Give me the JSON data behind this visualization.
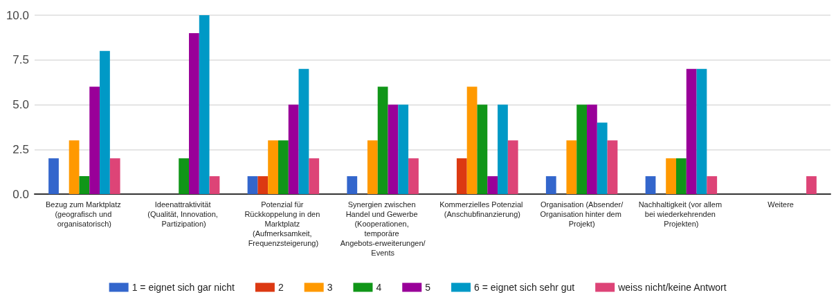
{
  "chart_data": {
    "type": "bar",
    "categories": [
      "Bezug zum Marktplatz (geografisch und organisatorisch)",
      "Ideenattraktivität (Qualität, Innovation, Partizipation)",
      "Potenzial für Rückkoppelung in den Marktplatz (Aufmerksamkeit, Frequenzsteigerung)",
      "Synergien zwischen Handel und Gewerbe (Kooperationen, temporäre Angebots-erweiterungen/Events",
      "Kommerzielles Potenzial (Anschubfinanzierung)",
      "Organisation (Absender/Organisation hinter dem Projekt)",
      "Nachhaltigkeit (vor allem bei wiederkehrenden Projekten)",
      "Weitere"
    ],
    "series": [
      {
        "name": "1 = eignet sich gar nicht",
        "color": "#3366cc",
        "values": [
          2,
          0,
          1,
          1,
          0,
          1,
          1,
          0
        ]
      },
      {
        "name": "2",
        "color": "#dc3912",
        "values": [
          0,
          0,
          1,
          0,
          2,
          0,
          0,
          0
        ]
      },
      {
        "name": "3",
        "color": "#ff9900",
        "values": [
          3,
          0,
          3,
          3,
          6,
          3,
          2,
          0
        ]
      },
      {
        "name": "4",
        "color": "#109618",
        "values": [
          1,
          2,
          3,
          6,
          5,
          5,
          2,
          0
        ]
      },
      {
        "name": "5",
        "color": "#990099",
        "values": [
          6,
          9,
          5,
          5,
          1,
          5,
          7,
          0
        ]
      },
      {
        "name": "6 = eignet sich sehr gut",
        "color": "#0099c6",
        "values": [
          8,
          10,
          7,
          5,
          5,
          4,
          7,
          0
        ]
      },
      {
        "name": "weiss nicht/keine Antwort",
        "color": "#dd4477",
        "values": [
          2,
          1,
          2,
          2,
          3,
          3,
          1,
          1
        ]
      }
    ],
    "ylim": [
      0,
      10
    ],
    "yticks": [
      {
        "value": 0,
        "label": "0.0"
      },
      {
        "value": 2.5,
        "label": "2.5"
      },
      {
        "value": 5,
        "label": "5.0"
      },
      {
        "value": 7.5,
        "label": "7.5"
      },
      {
        "value": 10,
        "label": "10.0"
      }
    ],
    "grid": "y",
    "legend": "bottom"
  }
}
